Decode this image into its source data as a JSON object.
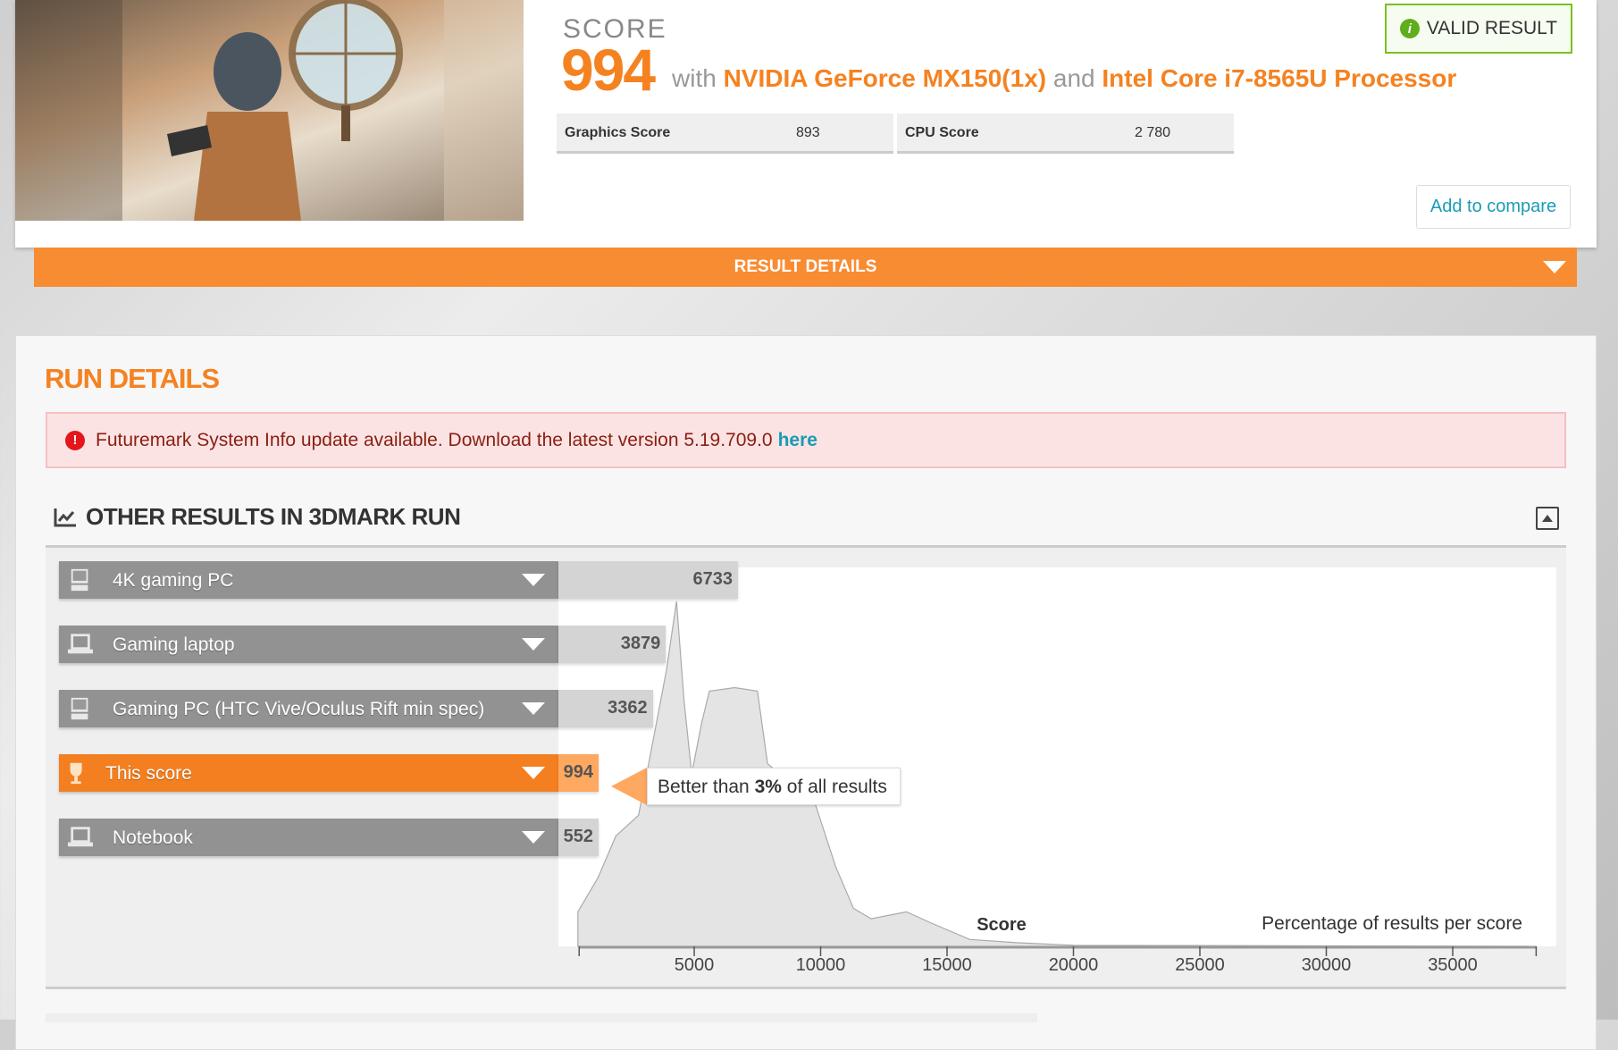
{
  "header": {
    "score_label": "SCORE",
    "score": "994",
    "with": "with",
    "gpu": "NVIDIA GeForce MX150(1x)",
    "and": "and",
    "cpu": "Intel Core i7-8565U Processor",
    "graphics_score_label": "Graphics Score",
    "graphics_score": "893",
    "cpu_score_label": "CPU Score",
    "cpu_score": "2 780",
    "valid_label": "VALID RESULT",
    "compare_label": "Add to compare",
    "result_details_label": "RESULT DETAILS"
  },
  "run_details": {
    "title": "RUN DETAILS",
    "alert_text": "Futuremark System Info update available. Download the latest version 5.19.709.0",
    "alert_link": "here",
    "other_title": "OTHER RESULTS IN 3DMARK RUN"
  },
  "colors": {
    "accent": "#f58220",
    "valid": "#79c11f",
    "link": "#1a9bb5",
    "alert_bg": "#fbe3e4"
  },
  "rows": [
    {
      "label": "4K gaming PC",
      "value": "6733",
      "icon": "desktop-icon"
    },
    {
      "label": "Gaming laptop",
      "value": "3879",
      "icon": "laptop-icon"
    },
    {
      "label": "Gaming PC (HTC Vive/Oculus Rift min spec)",
      "value": "3362",
      "icon": "desktop-icon"
    },
    {
      "label": "This score",
      "value": "994",
      "icon": "trophy-icon",
      "highlight": true
    },
    {
      "label": "Notebook",
      "value": "552",
      "icon": "laptop-icon"
    }
  ],
  "tooltip": {
    "prefix": "Better than",
    "percent": "3%",
    "suffix": "of all results"
  },
  "chart_data": {
    "type": "area",
    "xlabel": "Score",
    "ylabel": "Percentage of results per score",
    "xlim": [
      450,
      38300
    ],
    "xticks": [
      5000,
      10000,
      15000,
      20000,
      25000,
      30000,
      35000
    ],
    "grid": false,
    "x": [
      400,
      1200,
      1900,
      2800,
      3200,
      3900,
      4300,
      4600,
      4900,
      5300,
      5600,
      6600,
      7500,
      7900,
      9800,
      10600,
      11300,
      12000,
      13400,
      14300,
      15900,
      17900,
      20000,
      38000
    ],
    "y": [
      10,
      20,
      32,
      38,
      53,
      80,
      100,
      71,
      50,
      65,
      74,
      75,
      74,
      53,
      41,
      23,
      11,
      8,
      10,
      7,
      2,
      1,
      0.3,
      0
    ]
  }
}
